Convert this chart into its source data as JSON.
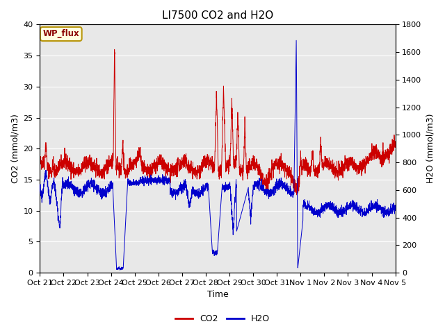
{
  "title": "LI7500 CO2 and H2O",
  "xlabel": "Time",
  "ylabel_left": "CO2 (mmol/m3)",
  "ylabel_right": "H2O (mmol/m3)",
  "xlim": [
    0,
    15
  ],
  "ylim_left": [
    0,
    40
  ],
  "ylim_right": [
    0,
    1800
  ],
  "xtick_labels": [
    "Oct 21",
    "Oct 22",
    "Oct 23",
    "Oct 24",
    "Oct 25",
    "Oct 26",
    "Oct 27",
    "Oct 28",
    "Oct 29",
    "Oct 30",
    "Oct 31",
    "Nov 1",
    "Nov 2",
    "Nov 3",
    "Nov 4",
    "Nov 5"
  ],
  "annotation_text": "WP_flux",
  "co2_color": "#cc0000",
  "h2o_color": "#0000cc",
  "background_color": "#e8e8e8",
  "grid_color": "white",
  "title_fontsize": 11,
  "axis_fontsize": 9,
  "tick_fontsize": 8,
  "legend_fontsize": 9,
  "fig_width": 6.4,
  "fig_height": 4.8,
  "dpi": 100
}
